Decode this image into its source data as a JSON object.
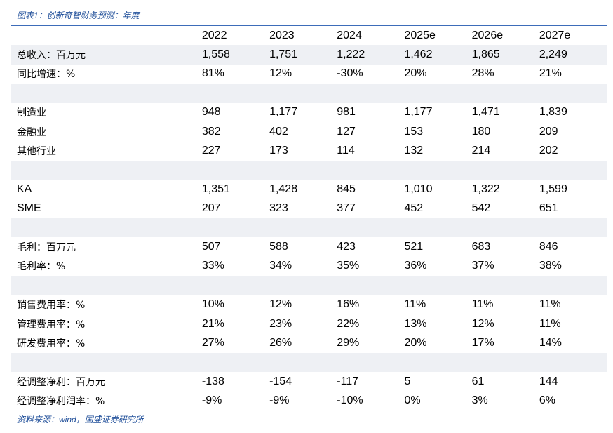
{
  "title": "图表1：创新奇智财务预测：年度",
  "source": "资料来源：wind，国盛证券研究所",
  "header": [
    "2022",
    "2023",
    "2024",
    "2025e",
    "2026e",
    "2027e"
  ],
  "rows": [
    {
      "label": "总收入：百万元",
      "values": [
        "1,558",
        "1,751",
        "1,222",
        "1,462",
        "1,865",
        "2,249"
      ],
      "shade": true
    },
    {
      "label": "同比增速：%",
      "values": [
        "81%",
        "12%",
        "-30%",
        "20%",
        "28%",
        "21%"
      ],
      "shade": false
    },
    {
      "label": "",
      "values": [
        "",
        "",
        "",
        "",
        "",
        ""
      ],
      "shade": true
    },
    {
      "label": "制造业",
      "values": [
        "948",
        "1,177",
        "981",
        "1,177",
        "1,471",
        "1,839"
      ],
      "shade": false
    },
    {
      "label": "金融业",
      "values": [
        "382",
        "402",
        "127",
        "153",
        "180",
        "209"
      ],
      "shade": false
    },
    {
      "label": "其他行业",
      "values": [
        "227",
        "173",
        "114",
        "132",
        "214",
        "202"
      ],
      "shade": false
    },
    {
      "label": "",
      "values": [
        "",
        "",
        "",
        "",
        "",
        ""
      ],
      "shade": true
    },
    {
      "label": "KA",
      "values": [
        "1,351",
        "1,428",
        "845",
        "1,010",
        "1,322",
        "1,599"
      ],
      "shade": false
    },
    {
      "label": "SME",
      "values": [
        "207",
        "323",
        "377",
        "452",
        "542",
        "651"
      ],
      "shade": false
    },
    {
      "label": "",
      "values": [
        "",
        "",
        "",
        "",
        "",
        ""
      ],
      "shade": true
    },
    {
      "label": "毛利：百万元",
      "values": [
        "507",
        "588",
        "423",
        "521",
        "683",
        "846"
      ],
      "shade": false
    },
    {
      "label": "毛利率：%",
      "values": [
        "33%",
        "34%",
        "35%",
        "36%",
        "37%",
        "38%"
      ],
      "shade": false
    },
    {
      "label": "",
      "values": [
        "",
        "",
        "",
        "",
        "",
        ""
      ],
      "shade": true
    },
    {
      "label": "销售费用率：%",
      "values": [
        "10%",
        "12%",
        "16%",
        "11%",
        "11%",
        "11%"
      ],
      "shade": false
    },
    {
      "label": "管理费用率：%",
      "values": [
        "21%",
        "23%",
        "22%",
        "13%",
        "12%",
        "11%"
      ],
      "shade": false
    },
    {
      "label": "研发费用率：%",
      "values": [
        "27%",
        "26%",
        "29%",
        "20%",
        "17%",
        "14%"
      ],
      "shade": false
    },
    {
      "label": "",
      "values": [
        "",
        "",
        "",
        "",
        "",
        ""
      ],
      "shade": true
    },
    {
      "label": "经调整净利：百万元",
      "values": [
        "-138",
        "-154",
        "-117",
        "5",
        "61",
        "144"
      ],
      "shade": false
    },
    {
      "label": "经调整净利润率：%",
      "values": [
        "-9%",
        "-9%",
        "-10%",
        "0%",
        "3%",
        "6%"
      ],
      "shade": false
    }
  ]
}
